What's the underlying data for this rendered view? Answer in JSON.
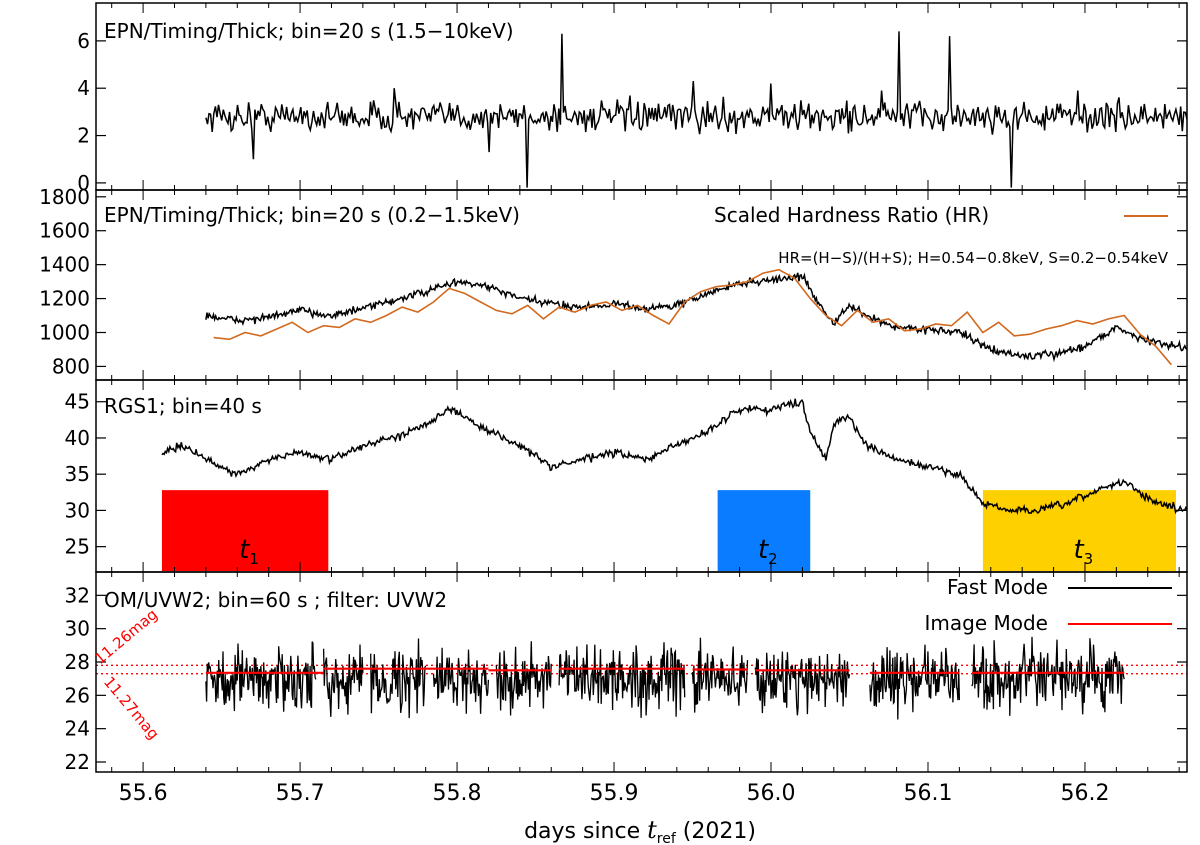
{
  "chart_data": [
    {
      "type": "line",
      "panel": 1,
      "title": "EPN/Timing/Thick; bin=20 s (1.5−10keV)",
      "ylim": [
        -0.3,
        7.6
      ],
      "yticks": [
        "0",
        "2",
        "4",
        "6"
      ],
      "yticks_values": [
        0,
        2,
        4,
        6
      ],
      "series": [
        {
          "name": "EPN 1.5-10keV",
          "color": "#000000",
          "x_range": [
            55.64,
            56.265
          ],
          "baseline": 2.8,
          "noise": 0.45,
          "spikes": [
            [
              55.67,
              1.0
            ],
            [
              55.7,
              3.2
            ],
            [
              55.76,
              4.0
            ],
            [
              55.82,
              4.9
            ],
            [
              55.82,
              1.3
            ],
            [
              55.845,
              -0.2
            ],
            [
              55.867,
              6.3
            ],
            [
              55.95,
              4.3
            ],
            [
              56.0,
              4.2
            ],
            [
              56.07,
              3.9
            ],
            [
              56.082,
              6.4
            ],
            [
              56.114,
              6.2
            ],
            [
              56.153,
              -0.2
            ],
            [
              56.195,
              3.9
            ]
          ]
        }
      ]
    },
    {
      "type": "line",
      "panel": 2,
      "title": "EPN/Timing/Thick; bin=20 s (0.2−1.5keV)",
      "legend": "Scaled Hardness Ratio (HR)",
      "annotation": "HR=(H−S)/(H+S); H=0.54−0.8keV, S=0.2−0.54keV",
      "ylim": [
        720,
        1840
      ],
      "yticks": [
        "800",
        "1000",
        "1200",
        "1400",
        "1600",
        "1800"
      ],
      "yticks_values": [
        800,
        1000,
        1200,
        1400,
        1600,
        1800
      ],
      "series": [
        {
          "name": "EPN 0.2-1.5keV",
          "color": "#000000",
          "x": [
            55.64,
            55.66,
            55.68,
            55.7,
            55.72,
            55.74,
            55.76,
            55.78,
            55.8,
            55.82,
            55.84,
            55.86,
            55.88,
            55.9,
            55.92,
            55.94,
            55.96,
            55.98,
            56.0,
            56.02,
            56.03,
            56.04,
            56.05,
            56.06,
            56.08,
            56.1,
            56.12,
            56.14,
            56.16,
            56.18,
            56.2,
            56.22,
            56.24,
            56.265
          ],
          "y": [
            1100,
            1070,
            1090,
            1130,
            1100,
            1140,
            1190,
            1240,
            1300,
            1270,
            1200,
            1170,
            1150,
            1170,
            1140,
            1160,
            1230,
            1290,
            1310,
            1330,
            1180,
            1050,
            1160,
            1100,
            1030,
            1020,
            1000,
            900,
            860,
            870,
            920,
            1030,
            950,
            910
          ]
        },
        {
          "name": "Scaled Hardness Ratio (HR)",
          "color": "#d2691e",
          "x": [
            55.645,
            55.655,
            55.665,
            55.675,
            55.685,
            55.695,
            55.705,
            55.715,
            55.725,
            55.735,
            55.745,
            55.755,
            55.765,
            55.775,
            55.785,
            55.795,
            55.805,
            55.815,
            55.825,
            55.835,
            55.845,
            55.855,
            55.865,
            55.875,
            55.885,
            55.895,
            55.905,
            55.915,
            55.925,
            55.935,
            55.945,
            55.955,
            55.965,
            55.975,
            55.985,
            55.995,
            56.005,
            56.015,
            56.025,
            56.035,
            56.045,
            56.055,
            56.065,
            56.075,
            56.085,
            56.095,
            56.105,
            56.115,
            56.125,
            56.135,
            56.145,
            56.155,
            56.165,
            56.175,
            56.185,
            56.195,
            56.205,
            56.215,
            56.225,
            56.235,
            56.245,
            56.255
          ],
          "y": [
            970,
            960,
            1000,
            980,
            1020,
            1060,
            1000,
            1040,
            1030,
            1080,
            1060,
            1100,
            1150,
            1120,
            1180,
            1260,
            1230,
            1180,
            1130,
            1110,
            1160,
            1080,
            1150,
            1120,
            1160,
            1180,
            1130,
            1160,
            1100,
            1050,
            1180,
            1240,
            1270,
            1280,
            1300,
            1350,
            1370,
            1320,
            1200,
            1100,
            1040,
            1130,
            1060,
            1080,
            1010,
            1020,
            1050,
            1040,
            1120,
            1000,
            1060,
            980,
            990,
            1020,
            1040,
            1070,
            1050,
            1080,
            1100,
            990,
            920,
            810
          ]
        }
      ]
    },
    {
      "type": "line",
      "panel": 3,
      "title": "RGS1; bin=40 s",
      "ylim": [
        21.5,
        48
      ],
      "yticks": [
        "25",
        "30",
        "35",
        "40",
        "45"
      ],
      "yticks_values": [
        25,
        30,
        35,
        40,
        45
      ],
      "series": [
        {
          "name": "RGS1",
          "color": "#000000",
          "x": [
            55.612,
            55.625,
            55.64,
            55.66,
            55.68,
            55.7,
            55.72,
            55.74,
            55.76,
            55.78,
            55.795,
            55.82,
            55.84,
            55.86,
            55.88,
            55.9,
            55.92,
            55.94,
            55.96,
            55.98,
            56.0,
            56.02,
            56.025,
            56.035,
            56.04,
            56.05,
            56.06,
            56.08,
            56.1,
            56.12,
            56.135,
            56.15,
            56.17,
            56.19,
            56.21,
            56.225,
            56.245,
            56.265
          ],
          "y": [
            38,
            39,
            37,
            35,
            37,
            38,
            37,
            39,
            40,
            42,
            44,
            41,
            39,
            36,
            37,
            38,
            37,
            39,
            41,
            44,
            44,
            45,
            41,
            37,
            42,
            43,
            39,
            37,
            36,
            35,
            31,
            30,
            30,
            31,
            33,
            34,
            31,
            30
          ]
        }
      ],
      "bands": [
        {
          "label": "t",
          "sub": "1",
          "color": "#ff0000",
          "x0": 55.612,
          "x1": 55.718,
          "y0": 21.5,
          "y1": 32.8
        },
        {
          "label": "t",
          "sub": "2",
          "color": "#0a7cff",
          "x0": 55.966,
          "x1": 56.025,
          "y0": 21.5,
          "y1": 32.8
        },
        {
          "label": "t",
          "sub": "3",
          "color": "#ffd000",
          "x0": 56.135,
          "x1": 56.258,
          "y0": 21.5,
          "y1": 32.8
        }
      ]
    },
    {
      "type": "line",
      "panel": 4,
      "title": "OM/UVW2; bin=60 s ; filter: UVW2",
      "ylim": [
        21.4,
        33.4
      ],
      "yticks": [
        "22",
        "24",
        "26",
        "28",
        "30",
        "32"
      ],
      "yticks_values": [
        22,
        24,
        26,
        28,
        30,
        32
      ],
      "legend": [
        {
          "name": "Fast Mode",
          "color": "#000000"
        },
        {
          "name": "Image Mode",
          "color": "#ff0000"
        }
      ],
      "annotations": [
        {
          "text": "11.26mag",
          "value": 27.8
        },
        {
          "text": "11.27mag",
          "value": 27.3
        }
      ],
      "series": [
        {
          "name": "Fast Mode",
          "color": "#000000",
          "baseline": 27.0,
          "noise": 1.3,
          "segments": [
            [
              55.64,
              55.71
            ],
            [
              55.715,
              55.74
            ],
            [
              55.745,
              55.78
            ],
            [
              55.785,
              55.82
            ],
            [
              55.825,
              55.86
            ],
            [
              55.865,
              55.945
            ],
            [
              55.95,
              55.985
            ],
            [
              55.99,
              56.05
            ],
            [
              56.063,
              56.12
            ],
            [
              56.128,
              56.225
            ]
          ]
        },
        {
          "name": "Image Mode",
          "color": "#ff0000",
          "segments": [
            [
              55.64,
              55.715,
              27.35
            ],
            [
              55.715,
              55.82,
              27.6
            ],
            [
              55.82,
              55.86,
              27.5
            ],
            [
              55.865,
              55.945,
              27.6
            ],
            [
              55.95,
              55.985,
              27.55
            ],
            [
              55.99,
              56.05,
              27.5
            ],
            [
              56.063,
              56.12,
              27.35
            ],
            [
              56.128,
              56.225,
              27.35
            ]
          ]
        }
      ],
      "reference_lines": [
        27.8,
        27.3
      ]
    }
  ],
  "xaxis": {
    "xlim": [
      55.57,
      56.265
    ],
    "ticks": [
      "55.6",
      "55.7",
      "55.8",
      "55.9",
      "56.0",
      "56.1",
      "56.2"
    ],
    "tick_values": [
      55.6,
      55.7,
      55.8,
      55.9,
      56.0,
      56.1,
      56.2
    ],
    "label_prefix": "days since ",
    "label_t": "t",
    "label_sub": "ref",
    "label_suffix": " (2021)"
  }
}
